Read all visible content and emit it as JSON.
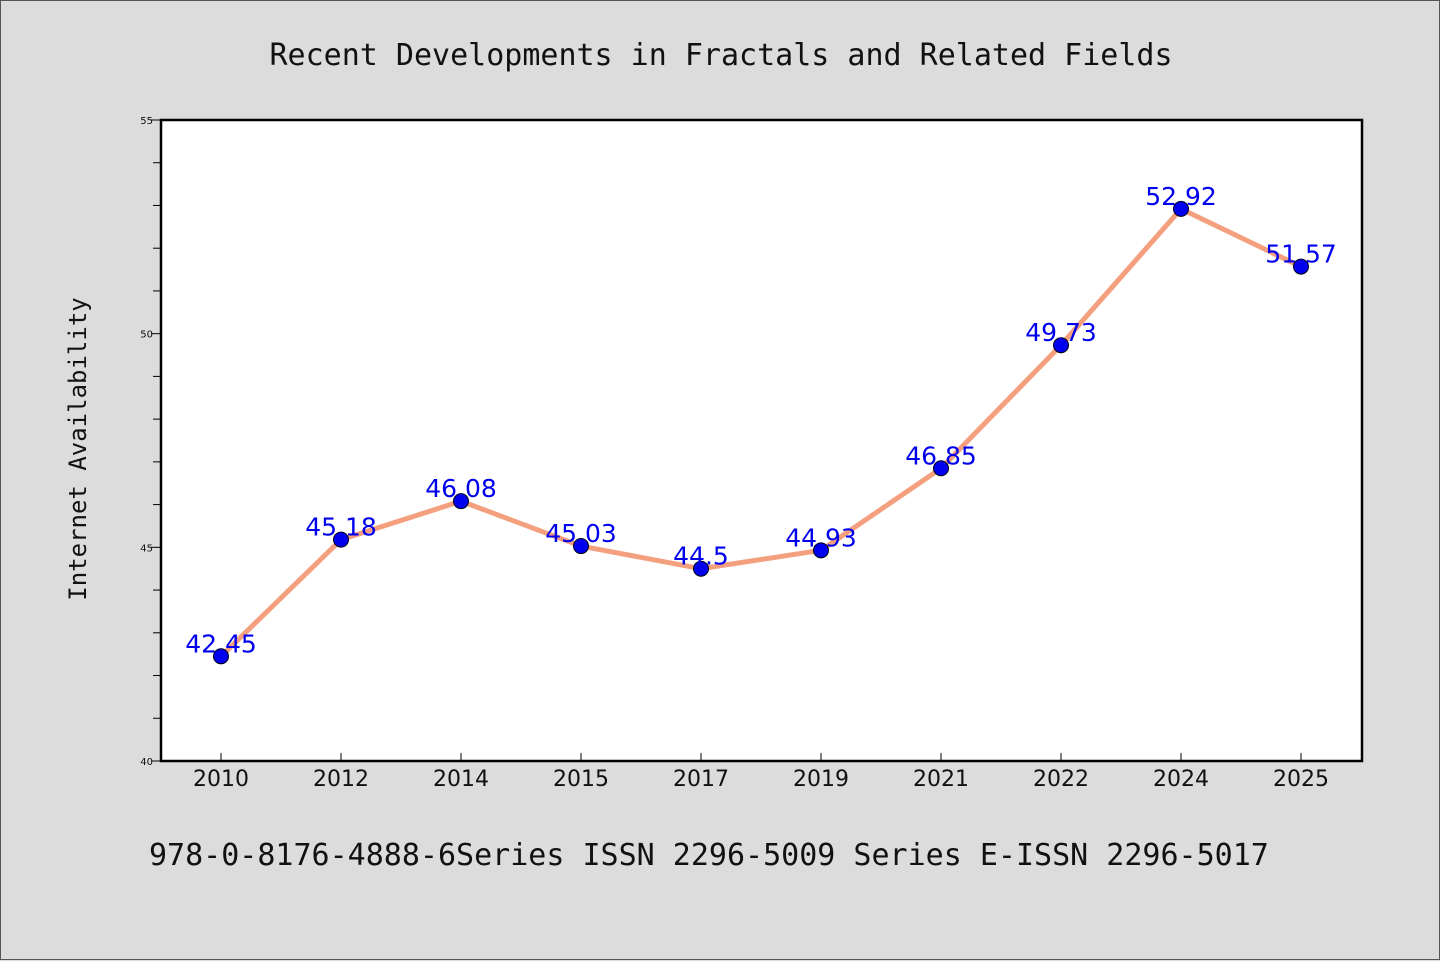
{
  "chart_data": {
    "type": "line",
    "title": "Recent Developments in Fractals and Related Fields",
    "xlabel": "",
    "ylabel": "Internet Availability",
    "categories": [
      "2010",
      "2012",
      "2014",
      "2015",
      "2017",
      "2019",
      "2021",
      "2022",
      "2024",
      "2025"
    ],
    "series": [
      {
        "values": [
          42.45,
          45.18,
          46.08,
          45.03,
          44.5,
          44.93,
          46.85,
          49.73,
          52.92,
          51.57
        ],
        "line_color": "#f4a07f",
        "marker_color": "#0000ee",
        "label_color": "#0000ee"
      }
    ],
    "data_labels": [
      "42.45",
      "45.18",
      "46.08",
      "45.03",
      "44.5",
      "44.93",
      "46.85",
      "49.73",
      "52.92",
      "51.57"
    ],
    "ylim": [
      40,
      55
    ],
    "yticks": [
      "40",
      "45",
      "50",
      "55"
    ],
    "grid": false,
    "legend": "none"
  },
  "footer": {
    "text": "978-0-8176-4888-6Series ISSN 2296-5009 Series E-ISSN 2296-5017"
  },
  "colors": {
    "background": "#dcdcdc",
    "plot_background": "#ffffff",
    "line": "#f4a07f",
    "marker": "#0000ee"
  }
}
